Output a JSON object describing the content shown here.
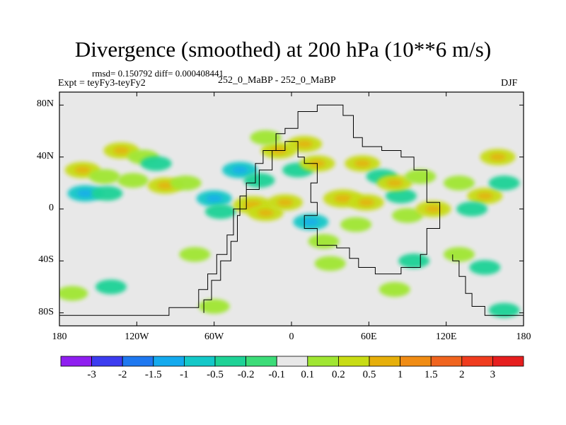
{
  "title": "Divergence (smoothed) at 200 hPa (10**6 m/s)",
  "stats": "rmsd= 0.150792 diff= 0.000408441",
  "expt": "Expt = teyFy3-teyFy2",
  "period": "252_0_MaBP - 252_0_MaBP",
  "season": "DJF",
  "chart_data": {
    "type": "heatmap",
    "variable": "Divergence (smoothed) at 200 hPa",
    "units": "10**6 m/s",
    "x_range": [
      -180,
      180
    ],
    "y_range": [
      -90,
      90
    ],
    "xticks": [
      {
        "value": -180,
        "label": "180"
      },
      {
        "value": -120,
        "label": "120W"
      },
      {
        "value": -60,
        "label": "60W"
      },
      {
        "value": 0,
        "label": "0"
      },
      {
        "value": 60,
        "label": "60E"
      },
      {
        "value": 120,
        "label": "120E"
      },
      {
        "value": 180,
        "label": "180"
      }
    ],
    "yticks": [
      {
        "value": 80,
        "label": "80N"
      },
      {
        "value": 40,
        "label": "40N"
      },
      {
        "value": 0,
        "label": "0"
      },
      {
        "value": -40,
        "label": "40S"
      },
      {
        "value": -80,
        "label": "80S"
      }
    ],
    "colorbar": {
      "labels": [
        "-3",
        "-2",
        "-1.5",
        "-1",
        "-0.5",
        "-0.2",
        "-0.1",
        "0.1",
        "0.2",
        "0.5",
        "1",
        "1.5",
        "2",
        "3"
      ],
      "colors": [
        "#8f1ef0",
        "#3c3cf0",
        "#1e78f0",
        "#14aaee",
        "#14c8c8",
        "#1ed296",
        "#3cdc78",
        "#e8e8e8",
        "#a0e632",
        "#c8dc14",
        "#e6af0a",
        "#f08c14",
        "#f0641e",
        "#f03c1e",
        "#e61e1e"
      ]
    },
    "anomalies": [
      {
        "lon": -162,
        "lat": 30,
        "value": 0.3
      },
      {
        "lon": -145,
        "lat": 25,
        "value": 0.2
      },
      {
        "lon": -160,
        "lat": 12,
        "value": -0.3
      },
      {
        "lon": -143,
        "lat": 12,
        "value": -0.2
      },
      {
        "lon": -132,
        "lat": 45,
        "value": 0.3
      },
      {
        "lon": -115,
        "lat": 40,
        "value": 0.2
      },
      {
        "lon": -123,
        "lat": 22,
        "value": 0.2
      },
      {
        "lon": -105,
        "lat": 35,
        "value": -0.2
      },
      {
        "lon": -98,
        "lat": 18,
        "value": 0.3
      },
      {
        "lon": -82,
        "lat": 20,
        "value": 0.2
      },
      {
        "lon": -60,
        "lat": 8,
        "value": -0.3
      },
      {
        "lon": -55,
        "lat": -2,
        "value": -0.2
      },
      {
        "lon": -40,
        "lat": 30,
        "value": -0.3
      },
      {
        "lon": -25,
        "lat": 22,
        "value": -0.2
      },
      {
        "lon": -30,
        "lat": 3,
        "value": 0.4
      },
      {
        "lon": -20,
        "lat": -3,
        "value": 0.3
      },
      {
        "lon": -5,
        "lat": 5,
        "value": 0.3
      },
      {
        "lon": -10,
        "lat": 45,
        "value": 0.3
      },
      {
        "lon": -20,
        "lat": 55,
        "value": 0.2
      },
      {
        "lon": 10,
        "lat": 50,
        "value": 0.3
      },
      {
        "lon": 5,
        "lat": 30,
        "value": -0.2
      },
      {
        "lon": 20,
        "lat": 35,
        "value": 0.3
      },
      {
        "lon": 15,
        "lat": -10,
        "value": -0.3
      },
      {
        "lon": 40,
        "lat": 8,
        "value": 0.4
      },
      {
        "lon": 58,
        "lat": 5,
        "value": 0.3
      },
      {
        "lon": 50,
        "lat": -12,
        "value": 0.2
      },
      {
        "lon": 25,
        "lat": -25,
        "value": 0.2
      },
      {
        "lon": 55,
        "lat": 35,
        "value": 0.3
      },
      {
        "lon": 70,
        "lat": 25,
        "value": -0.2
      },
      {
        "lon": 85,
        "lat": 10,
        "value": -0.2
      },
      {
        "lon": 80,
        "lat": 20,
        "value": 0.3
      },
      {
        "lon": 100,
        "lat": 25,
        "value": 0.2
      },
      {
        "lon": 90,
        "lat": -5,
        "value": 0.2
      },
      {
        "lon": 110,
        "lat": 0,
        "value": 0.3
      },
      {
        "lon": 130,
        "lat": 20,
        "value": 0.2
      },
      {
        "lon": 150,
        "lat": 10,
        "value": 0.3
      },
      {
        "lon": 165,
        "lat": 20,
        "value": -0.2
      },
      {
        "lon": 160,
        "lat": 40,
        "value": 0.3
      },
      {
        "lon": 140,
        "lat": 0,
        "value": -0.2
      },
      {
        "lon": 130,
        "lat": -35,
        "value": 0.2
      },
      {
        "lon": 150,
        "lat": -45,
        "value": -0.2
      },
      {
        "lon": 95,
        "lat": -40,
        "value": -0.2
      },
      {
        "lon": 30,
        "lat": -42,
        "value": 0.2
      },
      {
        "lon": -75,
        "lat": -35,
        "value": 0.2
      },
      {
        "lon": -140,
        "lat": -60,
        "value": -0.2
      },
      {
        "lon": -170,
        "lat": -65,
        "value": 0.2
      },
      {
        "lon": -60,
        "lat": -75,
        "value": 0.2
      },
      {
        "lon": 80,
        "lat": -62,
        "value": 0.2
      },
      {
        "lon": 165,
        "lat": -78,
        "value": -0.2
      }
    ],
    "continent_outline": [
      [
        -68,
        -80
      ],
      [
        -68,
        -70
      ],
      [
        -62,
        -70
      ],
      [
        -62,
        -55
      ],
      [
        -55,
        -55
      ],
      [
        -55,
        -40
      ],
      [
        -47,
        -40
      ],
      [
        -47,
        -25
      ],
      [
        -42,
        -25
      ],
      [
        -42,
        -5
      ],
      [
        -40,
        -5
      ],
      [
        -40,
        10
      ],
      [
        -35,
        10
      ],
      [
        -35,
        20
      ],
      [
        -28,
        20
      ],
      [
        -28,
        35
      ],
      [
        -22,
        35
      ],
      [
        -22,
        45
      ],
      [
        -12,
        45
      ],
      [
        -12,
        58
      ],
      [
        -5,
        58
      ],
      [
        -5,
        62
      ],
      [
        5,
        62
      ],
      [
        5,
        75
      ],
      [
        20,
        75
      ],
      [
        20,
        80
      ],
      [
        40,
        80
      ],
      [
        40,
        72
      ],
      [
        48,
        72
      ],
      [
        48,
        55
      ],
      [
        55,
        55
      ],
      [
        55,
        48
      ],
      [
        70,
        48
      ],
      [
        70,
        45
      ],
      [
        85,
        45
      ],
      [
        85,
        40
      ],
      [
        95,
        40
      ],
      [
        95,
        30
      ],
      [
        105,
        30
      ],
      [
        105,
        5
      ],
      [
        115,
        5
      ],
      [
        115,
        -15
      ],
      [
        105,
        -15
      ],
      [
        105,
        -35
      ],
      [
        100,
        -35
      ],
      [
        100,
        -45
      ],
      [
        85,
        -45
      ],
      [
        85,
        -50
      ],
      [
        65,
        -50
      ],
      [
        65,
        -45
      ],
      [
        52,
        -45
      ],
      [
        52,
        -38
      ],
      [
        45,
        -38
      ],
      [
        45,
        -30
      ],
      [
        35,
        -30
      ],
      [
        35,
        -28
      ],
      [
        20,
        -28
      ],
      [
        20,
        -15
      ],
      [
        10,
        -15
      ],
      [
        10,
        -5
      ],
      [
        20,
        -5
      ],
      [
        20,
        5
      ],
      [
        15,
        5
      ],
      [
        15,
        20
      ],
      [
        20,
        20
      ],
      [
        20,
        35
      ],
      [
        10,
        35
      ],
      [
        10,
        40
      ],
      [
        5,
        40
      ],
      [
        5,
        52
      ],
      [
        -5,
        52
      ],
      [
        -5,
        45
      ],
      [
        -15,
        45
      ],
      [
        -15,
        30
      ],
      [
        -25,
        30
      ],
      [
        -25,
        15
      ],
      [
        -35,
        15
      ],
      [
        -35,
        0
      ],
      [
        -45,
        0
      ],
      [
        -45,
        -20
      ],
      [
        -50,
        -20
      ],
      [
        -50,
        -35
      ],
      [
        -58,
        -35
      ],
      [
        -58,
        -50
      ],
      [
        -65,
        -50
      ],
      [
        -65,
        -62
      ],
      [
        -72,
        -62
      ],
      [
        -72,
        -76
      ],
      [
        -95,
        -76
      ],
      [
        -95,
        -82
      ],
      [
        -180,
        -82
      ]
    ],
    "continent_outline_2": [
      [
        125,
        -35
      ],
      [
        125,
        -40
      ],
      [
        130,
        -40
      ],
      [
        130,
        -52
      ],
      [
        135,
        -52
      ],
      [
        135,
        -65
      ],
      [
        140,
        -65
      ],
      [
        140,
        -75
      ],
      [
        150,
        -75
      ],
      [
        150,
        -82
      ],
      [
        180,
        -82
      ]
    ]
  }
}
